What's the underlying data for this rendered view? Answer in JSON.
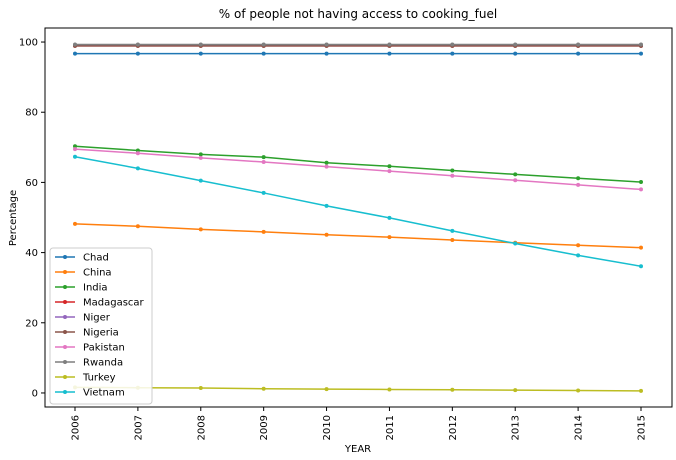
{
  "chart_data": {
    "type": "line",
    "title": "% of people not having access to cooking_fuel",
    "xlabel": "YEAR",
    "ylabel": "Percentage",
    "x": [
      "2006",
      "2007",
      "2008",
      "2009",
      "2010",
      "2011",
      "2012",
      "2013",
      "2014",
      "2015"
    ],
    "ylim": [
      -4,
      104
    ],
    "yticks": [
      0,
      20,
      40,
      60,
      80,
      100
    ],
    "grid": false,
    "legend_position": "lower-left",
    "series": [
      {
        "name": "Chad",
        "color": "#1f77b4",
        "values": [
          96.7,
          96.7,
          96.7,
          96.7,
          96.7,
          96.7,
          96.7,
          96.7,
          96.7,
          96.7
        ]
      },
      {
        "name": "China",
        "color": "#ff7f0e",
        "values": [
          48.2,
          47.5,
          46.6,
          45.9,
          45.1,
          44.4,
          43.6,
          42.8,
          42.1,
          41.4
        ]
      },
      {
        "name": "India",
        "color": "#2ca02c",
        "values": [
          70.3,
          69.1,
          68.0,
          67.2,
          65.6,
          64.6,
          63.4,
          62.3,
          61.2,
          60.1
        ]
      },
      {
        "name": "Madagascar",
        "color": "#d62728",
        "values": [
          98.9,
          98.9,
          98.9,
          98.9,
          98.9,
          98.9,
          98.9,
          98.9,
          98.9,
          98.9
        ]
      },
      {
        "name": "Niger",
        "color": "#9467bd",
        "values": [
          99.0,
          99.0,
          99.0,
          99.0,
          99.0,
          99.0,
          99.0,
          99.0,
          99.0,
          99.0
        ]
      },
      {
        "name": "Nigeria",
        "color": "#8c564b",
        "values": [
          98.9,
          98.9,
          98.9,
          98.9,
          98.9,
          98.9,
          98.9,
          98.9,
          98.9,
          98.9
        ]
      },
      {
        "name": "Pakistan",
        "color": "#e377c2",
        "values": [
          69.5,
          68.3,
          67.0,
          65.8,
          64.5,
          63.2,
          61.9,
          60.6,
          59.3,
          58.0
        ]
      },
      {
        "name": "Rwanda",
        "color": "#7f7f7f",
        "values": [
          99.3,
          99.3,
          99.3,
          99.3,
          99.3,
          99.3,
          99.3,
          99.3,
          99.3,
          99.3
        ]
      },
      {
        "name": "Turkey",
        "color": "#bcbd22",
        "values": [
          1.6,
          1.5,
          1.4,
          1.2,
          1.1,
          1.0,
          0.9,
          0.8,
          0.7,
          0.6
        ]
      },
      {
        "name": "Vietnam",
        "color": "#17becf",
        "values": [
          67.3,
          64.0,
          60.5,
          57.0,
          53.3,
          49.9,
          46.2,
          42.6,
          39.2,
          36.1
        ]
      }
    ]
  }
}
